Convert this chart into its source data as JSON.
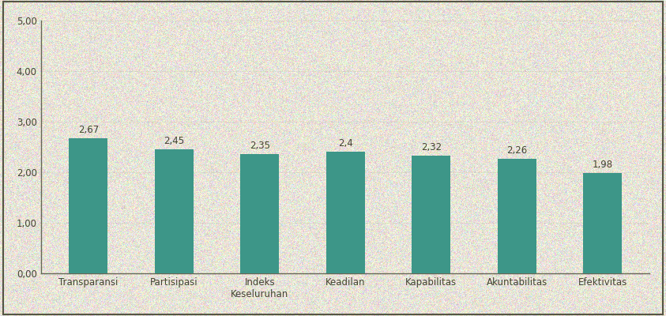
{
  "categories": [
    "Transparansi",
    "Partisipasi",
    "Indeks\nKeseluruhan",
    "Keadilan",
    "Kapabilitas",
    "Akuntabilitas",
    "Efektivitas"
  ],
  "values": [
    2.67,
    2.45,
    2.35,
    2.4,
    2.32,
    2.26,
    1.98
  ],
  "labels": [
    "2,67",
    "2,45",
    "2,35",
    "2,4",
    "2,32",
    "2,26",
    "1,98"
  ],
  "bar_color": "#3d9688",
  "background_color": "#e8e4d8",
  "ylim": [
    0,
    5.0
  ],
  "yticks": [
    0.0,
    1.0,
    2.0,
    3.0,
    4.0,
    5.0
  ],
  "ytick_labels": [
    "0,00",
    "1,00",
    "2,00",
    "3,00",
    "4,00",
    "5,00"
  ],
  "grid_color": "#c8c4b0",
  "spine_color": "#666655",
  "text_color": "#444433",
  "label_fontsize": 8.5,
  "tick_fontsize": 8.5,
  "value_label_fontsize": 8.5,
  "bar_width": 0.45,
  "noise_seed": 42,
  "noise_alpha": 0.18
}
